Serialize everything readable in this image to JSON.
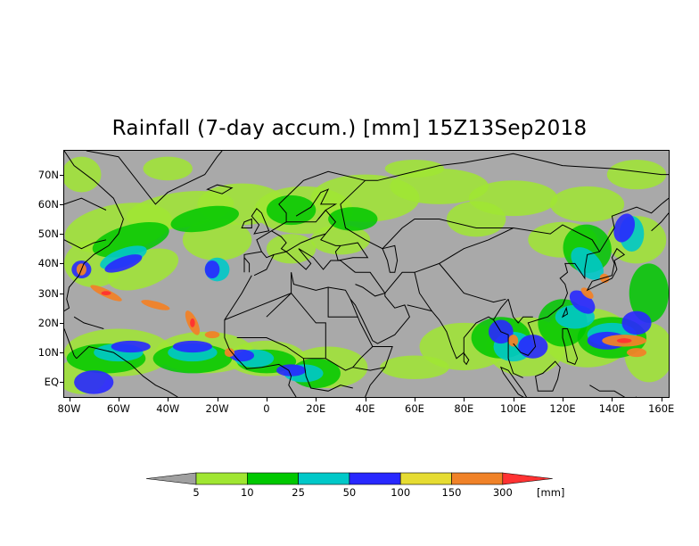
{
  "title": "Rainfall (7-day accum.) [mm] 15Z13Sep2018",
  "map": {
    "lon_range": [
      -82,
      163
    ],
    "lat_range": [
      -5,
      78
    ],
    "background_color": "#a9a9a9",
    "land_outline_color": "#000000",
    "lat_ticks": [
      "70N",
      "60N",
      "50N",
      "40N",
      "30N",
      "20N",
      "10N",
      "EQ"
    ],
    "lon_ticks": [
      "80W",
      "60W",
      "40W",
      "20W",
      "0",
      "20E",
      "40E",
      "60E",
      "80E",
      "100E",
      "120E",
      "140E",
      "160E"
    ]
  },
  "legend": {
    "unit": "[mm]",
    "thresholds": [
      "5",
      "10",
      "25",
      "50",
      "100",
      "150",
      "300"
    ],
    "colors": [
      "#a0a0a0",
      "#a0e632",
      "#00c800",
      "#00c8c8",
      "#2828ff",
      "#e6dc32",
      "#f08228",
      "#ff3232"
    ]
  }
}
